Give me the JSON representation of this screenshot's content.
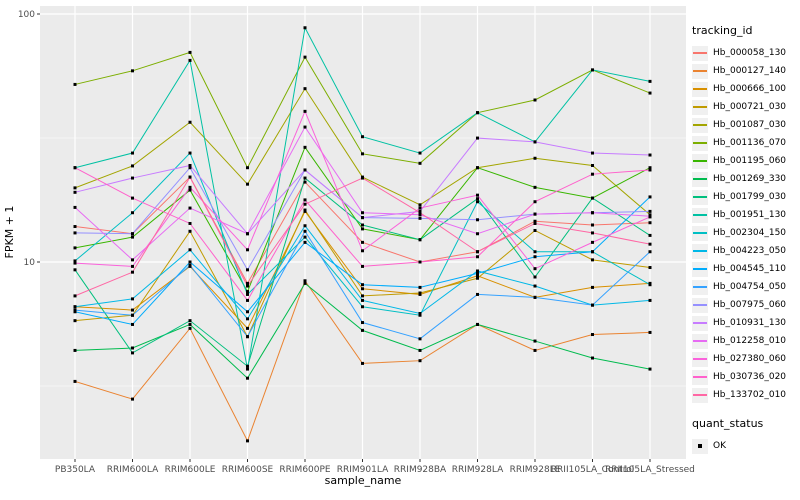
{
  "chart": {
    "y_axis_title": "FPKM + 1",
    "x_axis_title": "sample_name",
    "legend_tracking_title": "tracking_id",
    "legend_quant_title": "quant_status",
    "quant_ok_label": "OK"
  },
  "chart_data": {
    "type": "line",
    "title": "",
    "xlabel": "sample_name",
    "ylabel": "FPKM + 1",
    "y_scale": "log10",
    "ylim": [
      1.55,
      108
    ],
    "y_major_ticks": [
      100,
      10
    ],
    "y_minor_gridlines": [
      31.62,
      3.162
    ],
    "grid": true,
    "legend_position": "right",
    "panel_bg": "#EBEBEB",
    "grid_color": "#FFFFFF",
    "marker": "black-square",
    "quant_status_levels": [
      "OK"
    ],
    "categories": [
      "PB350LA",
      "RRIM600LA",
      "RRIM600LE",
      "RRIM600SE",
      "RRIM600PE",
      "RRIM901LA",
      "RRIM928BA",
      "RRIM928LA",
      "RRIM928LE",
      "RRII105LA_Control",
      "RRII105LA_Stressed"
    ],
    "series": [
      {
        "name": "Hb_000058_130",
        "color": "#F8766D",
        "values": [
          13.9,
          13.0,
          22.0,
          8.2,
          21.0,
          12.0,
          10.0,
          11.0,
          14.6,
          14.1,
          14.4
        ]
      },
      {
        "name": "Hb_000127_140",
        "color": "#EA8331",
        "values": [
          3.3,
          2.8,
          5.4,
          1.9,
          8.4,
          3.9,
          4.0,
          5.6,
          4.4,
          5.1,
          5.2
        ]
      },
      {
        "name": "Hb_000666_100",
        "color": "#D89000",
        "values": [
          6.6,
          6.4,
          9.6,
          5.4,
          16.0,
          7.8,
          7.4,
          8.8,
          7.2,
          7.9,
          8.2
        ]
      },
      {
        "name": "Hb_000721_030",
        "color": "#C09B00",
        "values": [
          5.8,
          6.1,
          13.3,
          5.0,
          16.2,
          7.3,
          7.5,
          8.6,
          13.4,
          10.2,
          9.5
        ]
      },
      {
        "name": "Hb_001087_030",
        "color": "#A3A500",
        "values": [
          19.9,
          24.4,
          36.6,
          20.6,
          50.0,
          22.0,
          17.0,
          24.0,
          26.2,
          24.5,
          15.5
        ]
      },
      {
        "name": "Hb_001136_070",
        "color": "#7CAE00",
        "values": [
          52.0,
          59.0,
          70.0,
          24.0,
          67.0,
          27.3,
          25.0,
          40.0,
          45.0,
          59.5,
          48.0
        ]
      },
      {
        "name": "Hb_001195_060",
        "color": "#39B600",
        "values": [
          11.4,
          12.6,
          19.5,
          7.6,
          29.0,
          13.6,
          12.3,
          24.0,
          20.0,
          18.1,
          24.0
        ]
      },
      {
        "name": "Hb_001269_330",
        "color": "#00BB4E",
        "values": [
          4.4,
          4.5,
          5.6,
          3.4,
          8.2,
          5.3,
          4.4,
          5.6,
          4.8,
          4.1,
          3.7
        ]
      },
      {
        "name": "Hb_001799_030",
        "color": "#00BF7D",
        "values": [
          9.3,
          4.3,
          5.8,
          3.8,
          21.8,
          14.1,
          12.3,
          18.0,
          8.7,
          18.1,
          12.8
        ]
      },
      {
        "name": "Hb_001951_130",
        "color": "#00C1A3",
        "values": [
          24.0,
          27.5,
          65.0,
          3.7,
          88.0,
          32.0,
          27.5,
          40.0,
          30.5,
          59.5,
          53.5
        ]
      },
      {
        "name": "Hb_002304_150",
        "color": "#00BFC4",
        "values": [
          10.1,
          15.8,
          27.5,
          7.4,
          12.6,
          6.6,
          6.1,
          17.5,
          11.0,
          11.0,
          8.1
        ]
      },
      {
        "name": "Hb_004223_050",
        "color": "#00B8E7",
        "values": [
          6.6,
          7.1,
          11.2,
          5.9,
          14.0,
          7.0,
          6.2,
          9.2,
          8.0,
          6.7,
          7.0
        ]
      },
      {
        "name": "Hb_004545_110",
        "color": "#00ACFC",
        "values": [
          6.3,
          5.6,
          10.0,
          6.3,
          12.0,
          8.1,
          7.9,
          9.0,
          10.5,
          11.0,
          18.3
        ]
      },
      {
        "name": "Hb_004754_050",
        "color": "#35A2FF",
        "values": [
          6.4,
          6.1,
          9.7,
          5.0,
          13.3,
          5.7,
          4.9,
          7.4,
          7.2,
          6.7,
          11.0
        ]
      },
      {
        "name": "Hb_007975_060",
        "color": "#9590FF",
        "values": [
          13.1,
          13.0,
          24.0,
          9.3,
          23.5,
          15.1,
          15.0,
          14.8,
          15.6,
          15.8,
          16.0
        ]
      },
      {
        "name": "Hb_010931_130",
        "color": "#C77CFF",
        "values": [
          19.1,
          21.8,
          24.5,
          13.0,
          23.5,
          15.1,
          16.0,
          31.6,
          30.5,
          27.5,
          27.0
        ]
      },
      {
        "name": "Hb_012258_010",
        "color": "#E76BF3",
        "values": [
          16.6,
          10.2,
          16.5,
          13.0,
          35.0,
          15.8,
          15.5,
          13.0,
          15.6,
          15.8,
          15.3
        ]
      },
      {
        "name": "Hb_027380_060",
        "color": "#FA62DB",
        "values": [
          9.9,
          9.6,
          20.0,
          11.2,
          40.5,
          11.1,
          16.5,
          18.6,
          9.4,
          12.0,
          15.2
        ]
      },
      {
        "name": "Hb_030736_020",
        "color": "#FF61CC",
        "values": [
          24.0,
          18.1,
          14.3,
          7.0,
          17.8,
          9.6,
          10.0,
          10.5,
          17.5,
          22.6,
          23.5
        ]
      },
      {
        "name": "Hb_133702_010",
        "color": "#FF67A4",
        "values": [
          7.3,
          9.1,
          22.0,
          8.0,
          17.1,
          21.8,
          15.8,
          11.0,
          14.3,
          13.1,
          11.8
        ]
      }
    ]
  }
}
